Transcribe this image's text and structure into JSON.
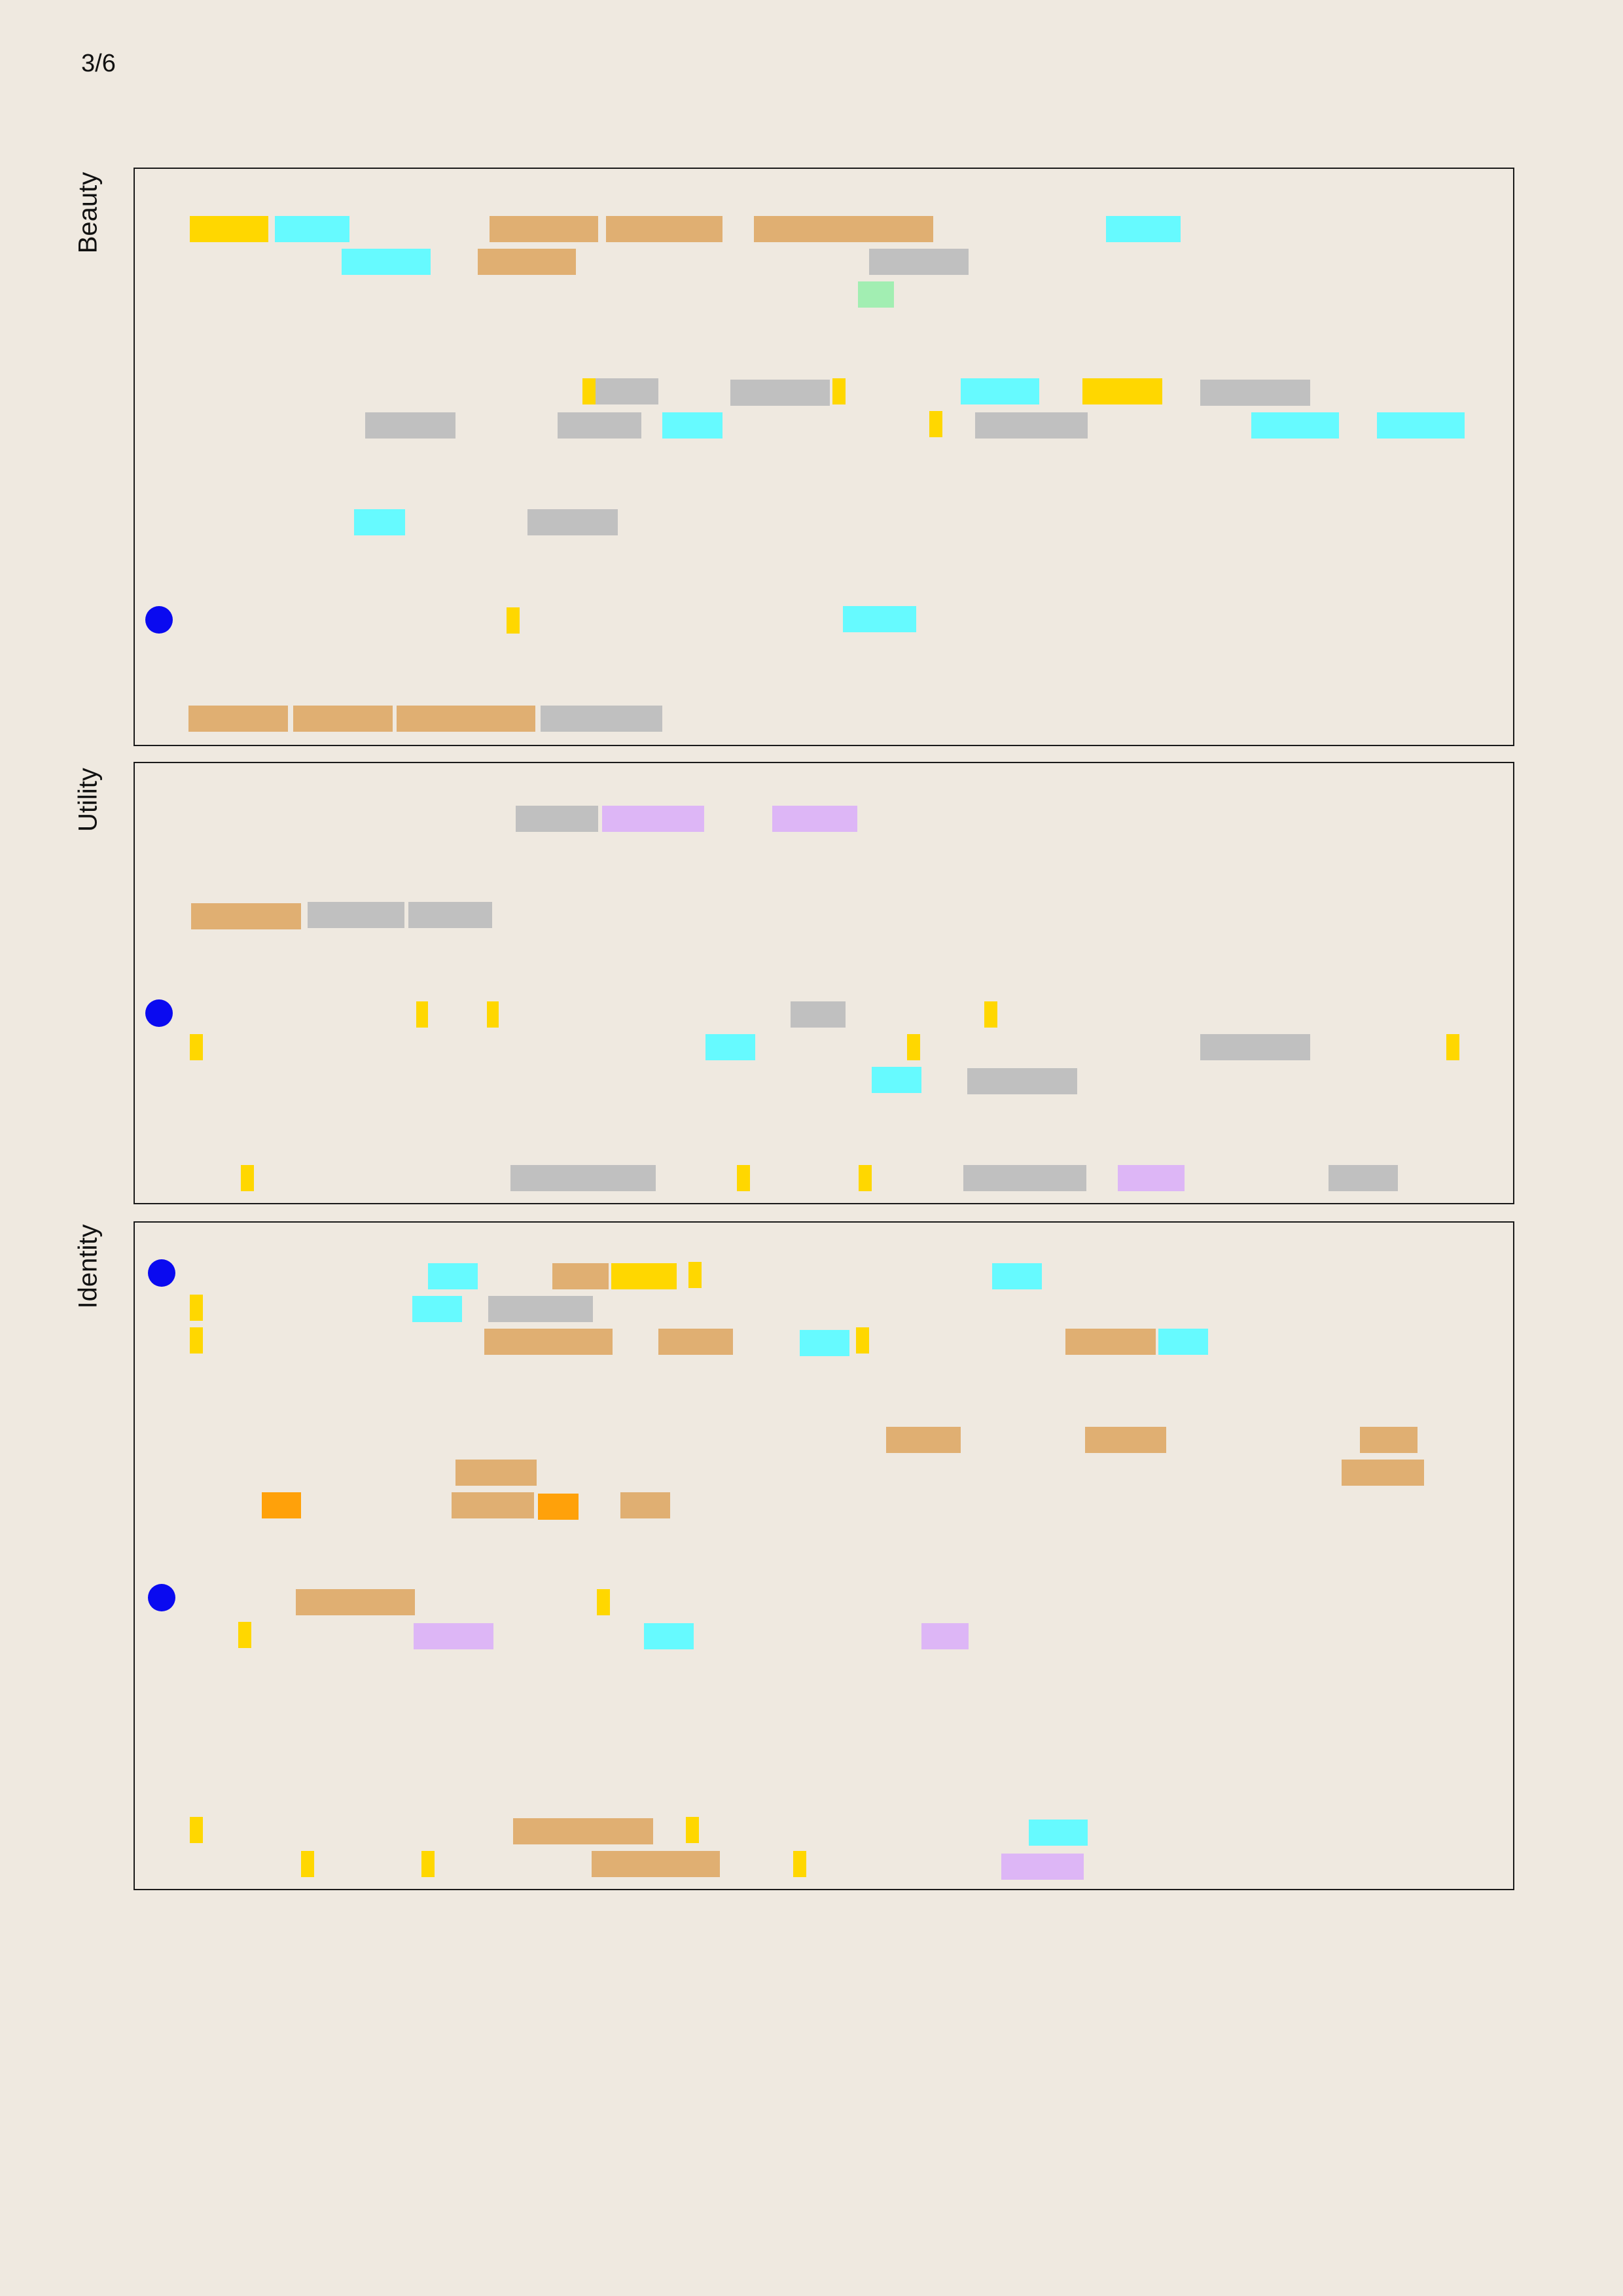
{
  "page_number": "3/6",
  "colors": {
    "gold": "#FFD700",
    "cyan": "#66FAFF",
    "tan": "#E0AF72",
    "grey": "#C0C0C0",
    "green": "#A2EEB2",
    "lilac": "#DDB6F6",
    "orange": "#FFA10A",
    "marker": "#0A0AF0"
  },
  "sections": [
    {
      "id": "beauty",
      "label": "Beauty"
    },
    {
      "id": "utility",
      "label": "Utility"
    },
    {
      "id": "identity",
      "label": "Identity"
    }
  ]
}
